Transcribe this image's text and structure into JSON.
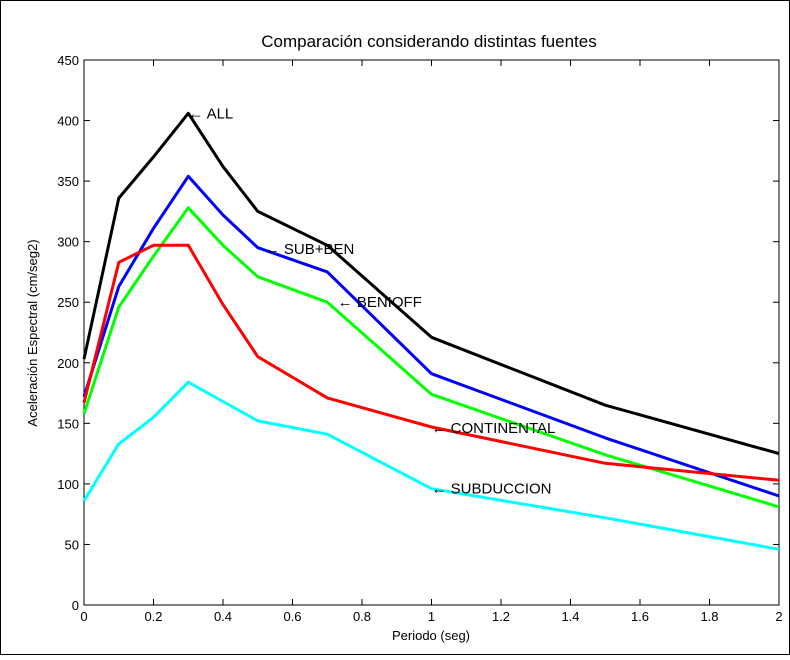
{
  "chart_data": {
    "type": "line",
    "title": "Comparación considerando distintas fuentes",
    "xlabel": "Periodo (seg)",
    "ylabel": "Aceleración Espectral (cm/seg2)",
    "xlim": [
      0,
      2
    ],
    "ylim": [
      0,
      450
    ],
    "xticks": [
      0,
      0.2,
      0.4,
      0.6,
      0.8,
      1,
      1.2,
      1.4,
      1.6,
      1.8,
      2
    ],
    "xtick_labels": [
      "0",
      "0.2",
      "0.4",
      "0.6",
      "0.8",
      "1",
      "1.2",
      "1.4",
      "1.6",
      "1.8",
      "2"
    ],
    "yticks": [
      0,
      50,
      100,
      150,
      200,
      250,
      300,
      350,
      400,
      450
    ],
    "ytick_labels": [
      "0",
      "50",
      "100",
      "150",
      "200",
      "250",
      "300",
      "350",
      "400",
      "450"
    ],
    "grid": false,
    "legend": "none",
    "series": [
      {
        "name": "ALL",
        "color": "#000000",
        "x": [
          0,
          0.1,
          0.2,
          0.3,
          0.4,
          0.5,
          0.7,
          1.0,
          1.5,
          2.0
        ],
        "y": [
          203,
          336,
          370,
          406,
          362,
          325,
          297,
          221,
          165,
          125
        ]
      },
      {
        "name": "SUB+BEN",
        "color": "#0000ff",
        "x": [
          0,
          0.1,
          0.2,
          0.3,
          0.4,
          0.5,
          0.7,
          1.0,
          1.5,
          2.0
        ],
        "y": [
          172,
          263,
          311,
          354,
          322,
          295,
          275,
          191,
          138,
          90
        ]
      },
      {
        "name": "BENIOFF",
        "color": "#00ff00",
        "x": [
          0,
          0.1,
          0.2,
          0.3,
          0.4,
          0.5,
          0.7,
          1.0,
          1.5,
          2.0
        ],
        "y": [
          158,
          246,
          288,
          328,
          297,
          271,
          250,
          174,
          124,
          81
        ]
      },
      {
        "name": "CONTINENTAL",
        "color": "#ff0000",
        "x": [
          0,
          0.1,
          0.2,
          0.3,
          0.4,
          0.5,
          0.7,
          1.0,
          1.5,
          2.0
        ],
        "y": [
          167,
          283,
          297,
          297,
          248,
          205,
          171,
          147,
          117,
          103
        ]
      },
      {
        "name": "SUBDUCCION",
        "color": "#00ffff",
        "x": [
          0,
          0.1,
          0.2,
          0.3,
          0.4,
          0.5,
          0.7,
          1.0,
          1.5,
          2.0
        ],
        "y": [
          86,
          133,
          155,
          184,
          168,
          152,
          141,
          96,
          72,
          46
        ]
      }
    ],
    "annotations": [
      {
        "text": "← ALL",
        "x": 0.3,
        "y": 406
      },
      {
        "text": "← SUB+BEN",
        "x": 0.52,
        "y": 294
      },
      {
        "text": "← BENIOFF",
        "x": 0.73,
        "y": 250
      },
      {
        "text": "← CONTINENTAL",
        "x": 1.0,
        "y": 146
      },
      {
        "text": "← SUBDUCCION",
        "x": 1.0,
        "y": 96
      }
    ]
  }
}
